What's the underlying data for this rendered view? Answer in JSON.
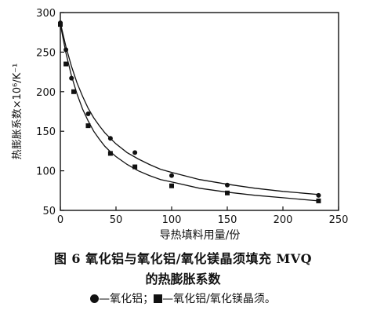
{
  "chart_data": {
    "type": "scatter",
    "xlabel": "导热填料用量/份",
    "ylabel": "热膨胀系数×10⁶/K⁻¹",
    "xlim": [
      0,
      250
    ],
    "ylim": [
      50,
      300
    ],
    "xticks": [
      0,
      50,
      100,
      150,
      200,
      250
    ],
    "yticks": [
      50,
      100,
      150,
      200,
      250,
      300
    ],
    "grid": false,
    "series": [
      {
        "name": "氧化铝",
        "marker": "circle",
        "points": [
          [
            0,
            287
          ],
          [
            5,
            253
          ],
          [
            10,
            217
          ],
          [
            25,
            172
          ],
          [
            45,
            141
          ],
          [
            67,
            123
          ],
          [
            100,
            94
          ],
          [
            150,
            82
          ],
          [
            232,
            69
          ]
        ],
        "curve": [
          [
            0,
            287
          ],
          [
            5,
            257
          ],
          [
            10,
            232
          ],
          [
            15,
            211
          ],
          [
            20,
            194
          ],
          [
            25,
            179
          ],
          [
            30,
            167
          ],
          [
            35,
            157
          ],
          [
            40,
            148
          ],
          [
            45,
            141
          ],
          [
            50,
            134
          ],
          [
            60,
            123
          ],
          [
            70,
            115
          ],
          [
            80,
            108
          ],
          [
            90,
            102
          ],
          [
            100,
            98
          ],
          [
            125,
            89
          ],
          [
            150,
            83
          ],
          [
            175,
            78
          ],
          [
            200,
            74
          ],
          [
            232,
            70
          ]
        ]
      },
      {
        "name": "氧化铝/氧化镁晶须",
        "marker": "square",
        "points": [
          [
            0,
            285
          ],
          [
            5,
            235
          ],
          [
            12,
            200
          ],
          [
            25,
            157
          ],
          [
            45,
            122
          ],
          [
            67,
            105
          ],
          [
            100,
            81
          ],
          [
            150,
            72
          ],
          [
            232,
            62
          ]
        ],
        "curve": [
          [
            0,
            285
          ],
          [
            5,
            249
          ],
          [
            10,
            220
          ],
          [
            15,
            197
          ],
          [
            20,
            178
          ],
          [
            25,
            163
          ],
          [
            30,
            150
          ],
          [
            35,
            140
          ],
          [
            40,
            131
          ],
          [
            45,
            124
          ],
          [
            50,
            118
          ],
          [
            60,
            108
          ],
          [
            70,
            100
          ],
          [
            80,
            94
          ],
          [
            90,
            89
          ],
          [
            100,
            86
          ],
          [
            125,
            78
          ],
          [
            150,
            73
          ],
          [
            175,
            69
          ],
          [
            200,
            66
          ],
          [
            232,
            62
          ]
        ]
      }
    ]
  },
  "caption": {
    "line1": "图 6    氧化铝与氧化铝/氧化镁晶须填充 MVQ",
    "line2": "的热膨胀系数"
  },
  "legend": {
    "dash1": "—",
    "label1": "氧化铝；",
    "dash2": "—",
    "label2": "氧化铝/氧化镁晶须。"
  },
  "colors": {
    "ink": "#111111",
    "background": "#ffffff"
  }
}
